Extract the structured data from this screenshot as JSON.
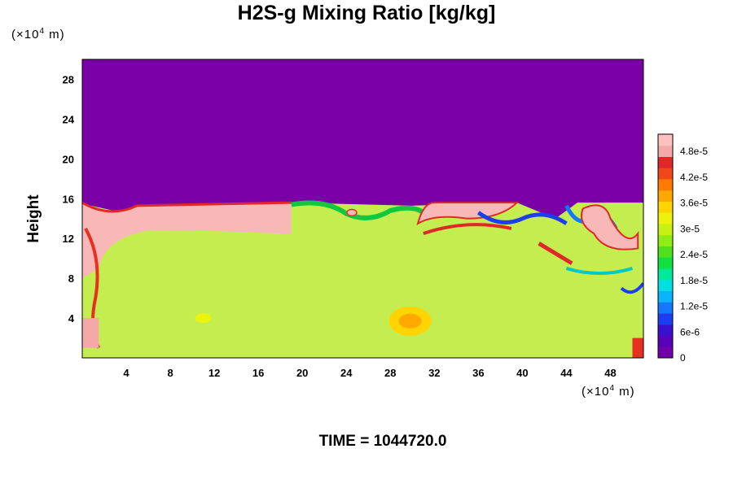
{
  "chart_data": {
    "type": "heatmap",
    "title": "H2S-g Mixing Ratio [kg/kg]",
    "ylabel": "Height",
    "xlabel": "",
    "x_unit_label": "(×10",
    "x_unit_exp": "4",
    "x_unit_tail": " m)",
    "y_unit_label": "(×10",
    "y_unit_exp": "4",
    "y_unit_tail": " m)",
    "x_ticks": [
      4,
      8,
      12,
      16,
      20,
      24,
      28,
      32,
      36,
      40,
      44,
      48
    ],
    "y_ticks": [
      4,
      8,
      12,
      16,
      20,
      24,
      28
    ],
    "xlim": [
      0,
      51
    ],
    "ylim": [
      0,
      30
    ],
    "colorbar_labels": [
      "0",
      "6e-6",
      "1.2e-5",
      "1.8e-5",
      "2.4e-5",
      "3e-5",
      "3.6e-5",
      "4.2e-5",
      "4.8e-5"
    ],
    "colorbar_range": [
      0,
      5.2e-05
    ],
    "colorbar_colors": [
      "#7200a8",
      "#5a00b8",
      "#3a10d0",
      "#1e3cf0",
      "#1478ff",
      "#0ab4ff",
      "#00e0e0",
      "#00e89a",
      "#10e040",
      "#50e01c",
      "#8cee14",
      "#c8f014",
      "#ecf20a",
      "#ffd400",
      "#ffa800",
      "#ff7a00",
      "#f04818",
      "#e02828",
      "#f4a8a8",
      "#ffc0c0"
    ],
    "field_description_regions": {
      "background_top": "#7a00a8",
      "upper_band_pink": "#f8b8b8",
      "lower_bulk": "#c4ee50"
    },
    "footer": "TIME = 1044720.0"
  }
}
